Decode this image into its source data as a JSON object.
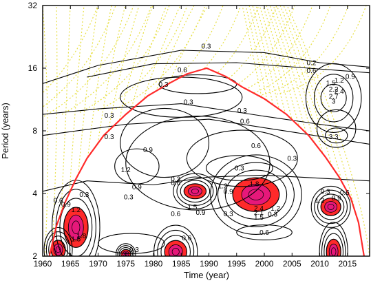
{
  "chart_data": {
    "type": "contour",
    "title": "",
    "xlabel": "Time (year)",
    "ylabel": "Period (years)",
    "xlim": [
      1960,
      2019
    ],
    "ylim": [
      2,
      32
    ],
    "y_scale": "log2",
    "x_ticks": [
      1960,
      1965,
      1970,
      1975,
      1980,
      1985,
      1990,
      1995,
      2000,
      2005,
      2010,
      2015
    ],
    "x_tick_labels": [
      "1960",
      "1965",
      "1970",
      "1975",
      "1980",
      "1985",
      "1990",
      "1995",
      "2000",
      "2005",
      "2010",
      "2015"
    ],
    "y_ticks": [
      2,
      4,
      8,
      16,
      32
    ],
    "y_tick_labels": [
      "2",
      "4",
      "8",
      "16",
      "32"
    ],
    "colors": {
      "contour_line": "#000000",
      "cone_of_influence": "#ff2a2a",
      "significant_fill_outer": "#ff2a2a",
      "significant_fill_inner": "#e6187a",
      "hatch": "#e8e046"
    },
    "cone_of_influence": [
      [
        1961.2,
        2.0
      ],
      [
        1962.5,
        2.8
      ],
      [
        1964,
        3.6
      ],
      [
        1966,
        4.7
      ],
      [
        1968,
        5.9
      ],
      [
        1971,
        7.6
      ],
      [
        1975,
        9.6
      ],
      [
        1979,
        11.8
      ],
      [
        1983,
        13.6
      ],
      [
        1986,
        15.0
      ],
      [
        1989.6,
        16.0
      ],
      [
        1993,
        14.6
      ],
      [
        1996,
        13.0
      ],
      [
        2000,
        11.4
      ],
      [
        2004,
        9.6
      ],
      [
        2008,
        7.6
      ],
      [
        2011,
        6.0
      ],
      [
        2013.5,
        4.8
      ],
      [
        2015.6,
        3.8
      ],
      [
        2017,
        2.9
      ],
      [
        2018,
        2.0
      ]
    ],
    "significant_regions": [
      {
        "center": [
          1966,
          2.75
        ],
        "rx": 2.2,
        "ry_log2": 0.32
      },
      {
        "center": [
          1962.8,
          2.15
        ],
        "rx": 1.3,
        "ry_log2": 0.15
      },
      {
        "center": [
          1975,
          2.05
        ],
        "rx": 0.9,
        "ry_log2": 0.07
      },
      {
        "center": [
          1984,
          2.1
        ],
        "rx": 2.0,
        "ry_log2": 0.18
      },
      {
        "center": [
          1987.5,
          4.1
        ],
        "rx": 2.0,
        "ry_log2": 0.12
      },
      {
        "center": [
          1998.5,
          3.95
        ],
        "rx": 4.2,
        "ry_log2": 0.27
      },
      {
        "center": [
          2012,
          3.45
        ],
        "rx": 1.8,
        "ry_log2": 0.14
      },
      {
        "center": [
          2012.5,
          2.1
        ],
        "rx": 1.3,
        "ry_log2": 0.2
      }
    ],
    "contour_labels": [
      {
        "text": "0.3",
        "x": 1989.5,
        "y": 20.4
      },
      {
        "text": "0.6",
        "x": 1985.2,
        "y": 15.7
      },
      {
        "text": "0.3",
        "x": 1981.8,
        "y": 13.4
      },
      {
        "text": "0.3",
        "x": 1986.3,
        "y": 11.0
      },
      {
        "text": "0.3",
        "x": 1996.0,
        "y": 10.0
      },
      {
        "text": "0.6",
        "x": 1996.5,
        "y": 8.9
      },
      {
        "text": "0.3",
        "x": 1972.0,
        "y": 9.5
      },
      {
        "text": "0.3",
        "x": 1972.0,
        "y": 7.5
      },
      {
        "text": "0.9",
        "x": 1979.0,
        "y": 6.5
      },
      {
        "text": "0.6",
        "x": 1998.5,
        "y": 6.8
      },
      {
        "text": "0.3",
        "x": 2005.0,
        "y": 5.9
      },
      {
        "text": "0.3",
        "x": 1995.5,
        "y": 5.3
      },
      {
        "text": "1.2",
        "x": 1975.0,
        "y": 5.2
      },
      {
        "text": "0.9",
        "x": 1977.0,
        "y": 4.3
      },
      {
        "text": "0.6",
        "x": 1984.0,
        "y": 4.5
      },
      {
        "text": "0.3",
        "x": 1984.0,
        "y": 4.7
      },
      {
        "text": "1.2",
        "x": 1992.5,
        "y": 4.35
      },
      {
        "text": "0.9",
        "x": 1993.5,
        "y": 4.1
      },
      {
        "text": "1.8",
        "x": 1998.2,
        "y": 4.45
      },
      {
        "text": "0.3",
        "x": 2011.0,
        "y": 4.1
      },
      {
        "text": "0.6",
        "x": 2014.5,
        "y": 4.05
      },
      {
        "text": "0.9",
        "x": 2013.0,
        "y": 3.8
      },
      {
        "text": "1.2",
        "x": 2010.0,
        "y": 3.7
      },
      {
        "text": "0.3",
        "x": 1967.5,
        "y": 3.95
      },
      {
        "text": "0.6",
        "x": 1962.8,
        "y": 3.7
      },
      {
        "text": "0.9",
        "x": 1964.2,
        "y": 3.55
      },
      {
        "text": "1.2",
        "x": 1966.0,
        "y": 3.35
      },
      {
        "text": "0.3",
        "x": 1975.5,
        "y": 3.85
      },
      {
        "text": "1.5",
        "x": 1987.0,
        "y": 3.45
      },
      {
        "text": "0.9",
        "x": 1988.5,
        "y": 3.25
      },
      {
        "text": "0.6",
        "x": 1984.0,
        "y": 3.2
      },
      {
        "text": "0.3",
        "x": 1993.5,
        "y": 3.2
      },
      {
        "text": "2.4",
        "x": 1999.0,
        "y": 3.4
      },
      {
        "text": "2.1",
        "x": 1999.0,
        "y": 3.25
      },
      {
        "text": "1.5",
        "x": 1999.0,
        "y": 3.08
      },
      {
        "text": "1.2",
        "x": 2002.0,
        "y": 3.4
      },
      {
        "text": "0.3",
        "x": 2001.5,
        "y": 3.18
      },
      {
        "text": "0.6",
        "x": 2000.0,
        "y": 2.6
      },
      {
        "text": "0.6",
        "x": 1986.0,
        "y": 2.45
      },
      {
        "text": "0.3",
        "x": 1976.5,
        "y": 2.15
      },
      {
        "text": "1.8",
        "x": 1967.0,
        "y": 2.5
      },
      {
        "text": "1.5",
        "x": 1966.0,
        "y": 2.42
      },
      {
        "text": "0.2",
        "x": 2008.5,
        "y": 17.0
      },
      {
        "text": "0.6",
        "x": 2008.5,
        "y": 15.6
      },
      {
        "text": "0.9",
        "x": 2015.5,
        "y": 14.6
      },
      {
        "text": "1.2",
        "x": 2013.5,
        "y": 14.0
      },
      {
        "text": "1.5",
        "x": 2012.0,
        "y": 13.6
      },
      {
        "text": "2.2",
        "x": 2012.5,
        "y": 12.7
      },
      {
        "text": "2.4",
        "x": 2013.5,
        "y": 12.4
      },
      {
        "text": "2.7",
        "x": 2012.5,
        "y": 11.7
      },
      {
        "text": "3",
        "x": 2012.5,
        "y": 11.1
      },
      {
        "text": "3.3",
        "x": 2012.5,
        "y": 7.5
      }
    ]
  }
}
